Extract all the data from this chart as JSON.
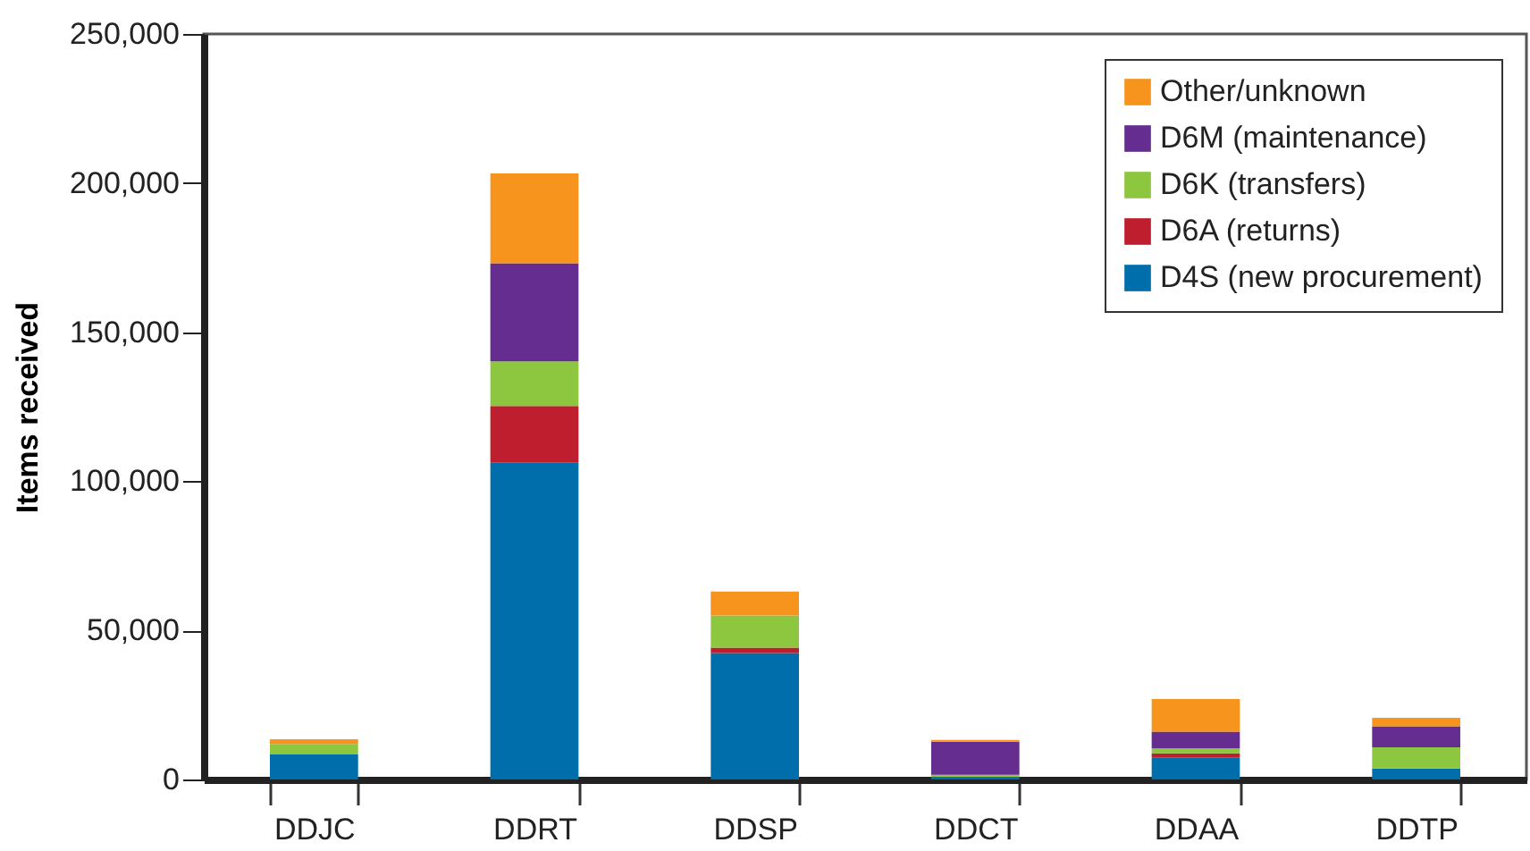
{
  "chart_data": {
    "type": "bar",
    "stacked": true,
    "ylabel": "Items received",
    "categories": [
      "DDJC",
      "DDRT",
      "DDSP",
      "DDCT",
      "DDAA",
      "DDTP"
    ],
    "series": [
      {
        "name": "D4S (new procurement)",
        "color": "#006eaa",
        "values": [
          8400,
          106200,
          42400,
          800,
          7400,
          3700
        ]
      },
      {
        "name": "D6A (returns)",
        "color": "#be1e2d",
        "values": [
          0,
          19000,
          1800,
          0,
          1400,
          0
        ]
      },
      {
        "name": "D6K (transfers)",
        "color": "#8dc63f",
        "values": [
          3500,
          15000,
          10800,
          800,
          1600,
          7100
        ]
      },
      {
        "name": "D6M (maintenance)",
        "color": "#662d91",
        "values": [
          0,
          32900,
          0,
          11100,
          5600,
          7000
        ]
      },
      {
        "name": "Other/unknown",
        "color": "#f7941d",
        "values": [
          1600,
          30100,
          8000,
          600,
          11000,
          2900
        ]
      }
    ],
    "ylim": [
      0,
      250000
    ],
    "yticks": [
      0,
      {
        "value": 50000,
        "label": "50,000"
      },
      {
        "value": 100000,
        "label": "100,000"
      },
      {
        "value": 150000,
        "label": "150,000"
      },
      {
        "value": 200000,
        "label": "200,000"
      },
      {
        "value": 250000,
        "label": "250,000"
      }
    ],
    "grid": false,
    "legend": "top right"
  }
}
